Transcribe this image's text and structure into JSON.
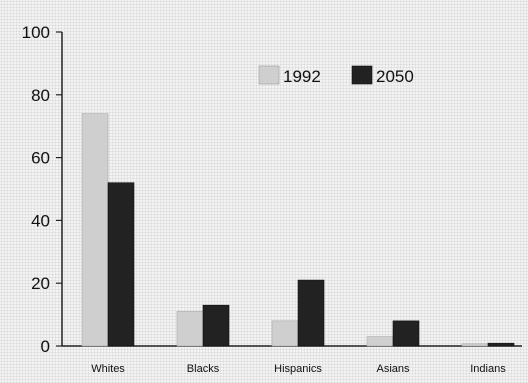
{
  "chart_data": {
    "type": "bar",
    "title": "",
    "xlabel": "",
    "ylabel": "",
    "ylim": [
      0,
      100
    ],
    "yticks": [
      0,
      20,
      40,
      60,
      80,
      100
    ],
    "grid": false,
    "legend_position": "top-right",
    "categories": [
      "Whites",
      "Blacks",
      "Hispanics",
      "Asians",
      "Indians"
    ],
    "series": [
      {
        "name": "1992",
        "color": "#cfcfcf",
        "values": [
          74,
          11,
          8,
          3,
          0.7
        ]
      },
      {
        "name": "2050",
        "color": "#222222",
        "values": [
          52,
          13,
          21,
          8,
          0.9
        ]
      }
    ]
  }
}
